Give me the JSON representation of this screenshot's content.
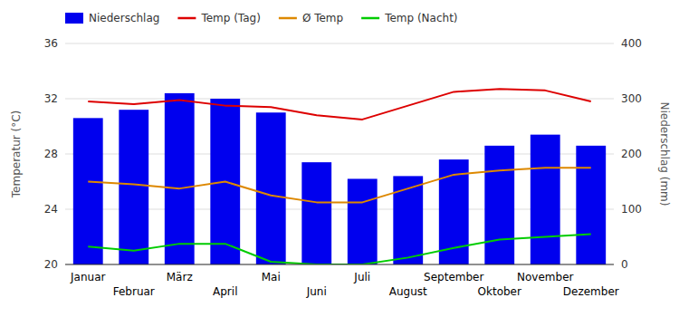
{
  "chart_data": {
    "type": "bar",
    "categories": [
      "Januar",
      "Februar",
      "März",
      "April",
      "Mai",
      "Juni",
      "Juli",
      "August",
      "September",
      "Oktober",
      "November",
      "Dezember"
    ],
    "series": [
      {
        "name": "Niederschlag",
        "type": "bar",
        "axis": "y2",
        "color": "#0000ee",
        "values": [
          265,
          280,
          310,
          300,
          275,
          185,
          155,
          160,
          190,
          215,
          235,
          215
        ]
      },
      {
        "name": "Temp (Tag)",
        "type": "line",
        "color": "#dd0000",
        "values": [
          31.8,
          31.6,
          31.9,
          31.5,
          31.4,
          30.8,
          30.5,
          31.5,
          32.5,
          32.7,
          32.6,
          31.8
        ]
      },
      {
        "name": "Ø Temp",
        "type": "line",
        "color": "#dd8800",
        "values": [
          26.0,
          25.8,
          25.5,
          26.0,
          25.0,
          24.5,
          24.5,
          25.5,
          26.5,
          26.8,
          27.0,
          27.0
        ]
      },
      {
        "name": "Temp (Nacht)",
        "type": "line",
        "color": "#00cc00",
        "values": [
          21.3,
          21.0,
          21.5,
          21.5,
          20.2,
          20.0,
          20.0,
          20.5,
          21.2,
          21.8,
          22.0,
          22.2
        ]
      }
    ],
    "ylabel": "Temperatur (°C)",
    "y2label": "Niederschlag (mm)",
    "ylim": [
      20,
      36
    ],
    "yticks": [
      20,
      24,
      28,
      32,
      36
    ],
    "y2lim": [
      0,
      400
    ],
    "y2ticks": [
      0,
      100,
      200,
      300,
      400
    ],
    "grid": true,
    "legend": "top"
  }
}
